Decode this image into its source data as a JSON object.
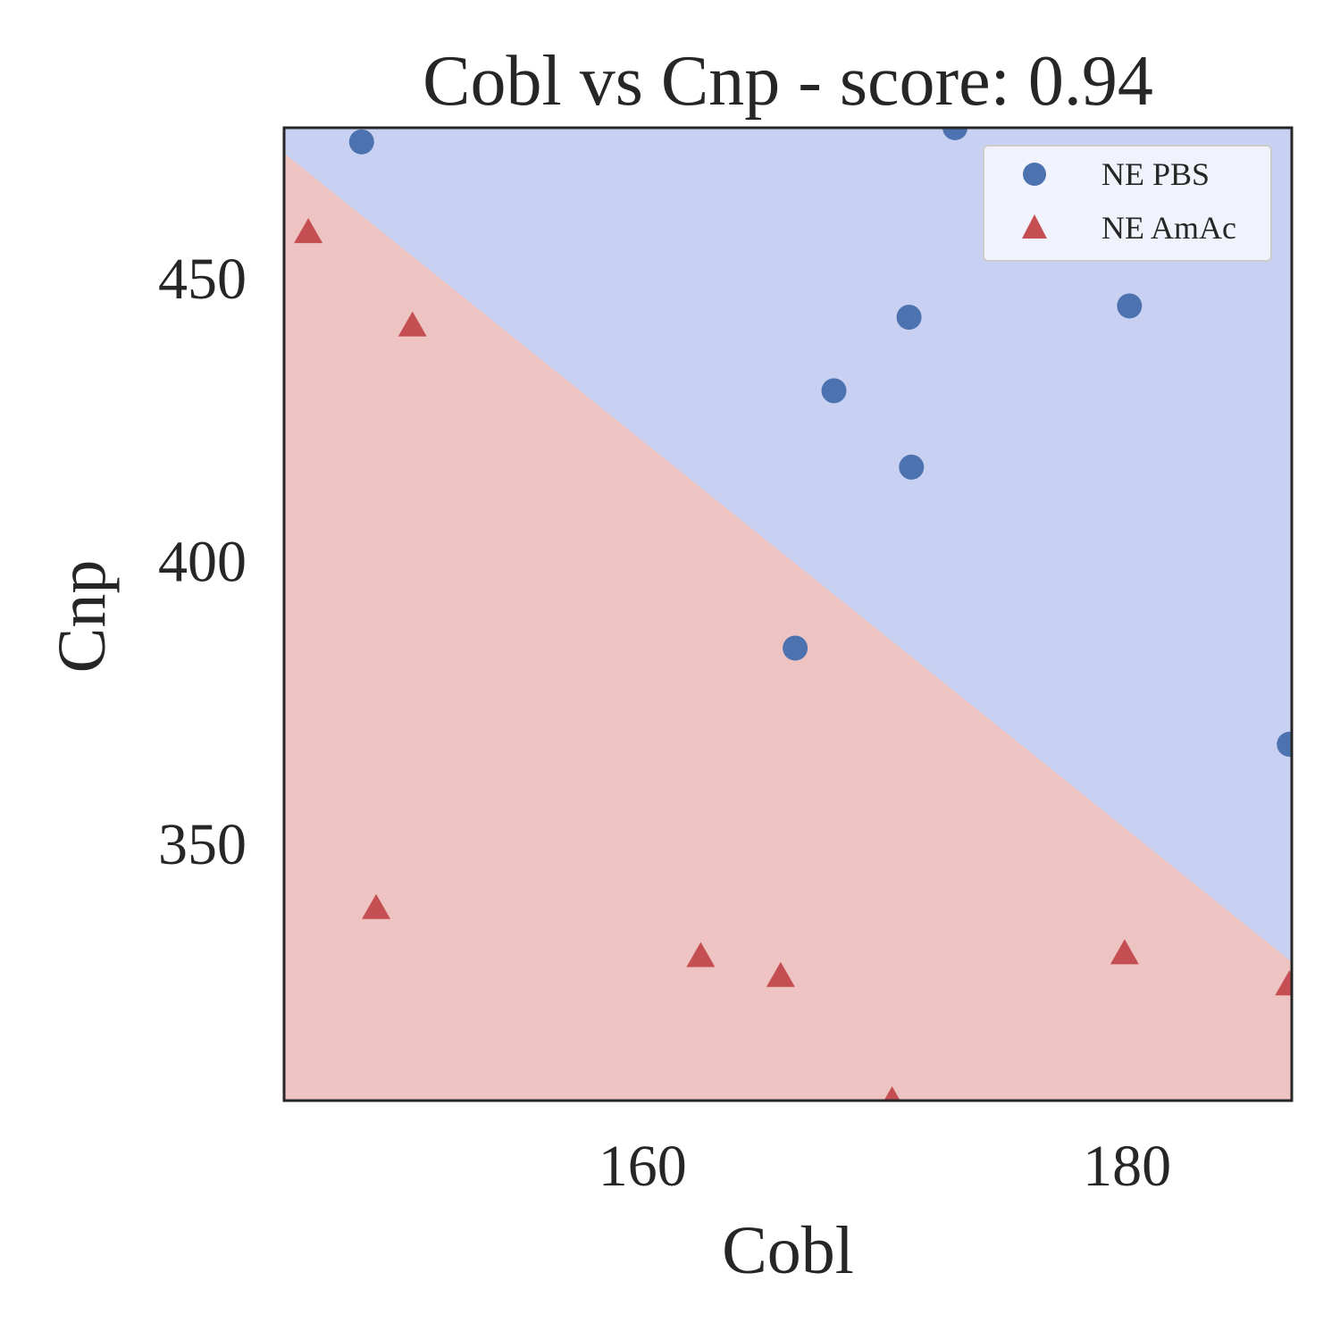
{
  "chart_data": {
    "type": "scatter",
    "title": "Cobl vs Cnp - score: 0.94",
    "xlabel": "Cobl",
    "ylabel": "Cnp",
    "xlim": [
      145.2,
      186.8
    ],
    "ylim": [
      304.5,
      476.5
    ],
    "xticks": [
      160,
      180
    ],
    "yticks": [
      350,
      400,
      450
    ],
    "grid": false,
    "legend_position": "top-right",
    "decision_boundary": {
      "description": "linear classifier boundary",
      "points": [
        [
          145.2,
          472.0
        ],
        [
          186.8,
          329.0
        ]
      ],
      "upper_region": "NE PBS",
      "lower_region": "NE AmAc"
    },
    "colors": {
      "NE PBS": "#4c72b0",
      "NE AmAc": "#c44e52",
      "region_upper": "#c8d1f1",
      "region_lower": "#eec4c3"
    },
    "series": [
      {
        "name": "NE PBS",
        "marker": "circle",
        "x": [
          148.4,
          172.9,
          167.9,
          171.0,
          180.1,
          171.1,
          166.3,
          186.7
        ],
        "y": [
          474.0,
          476.5,
          430.0,
          443.0,
          445.0,
          416.5,
          384.5,
          367.5
        ]
      },
      {
        "name": "NE AmAc",
        "marker": "triangle",
        "x": [
          146.2,
          150.5,
          149.0,
          162.4,
          165.7,
          179.9,
          186.7,
          170.3
        ],
        "y": [
          458.0,
          441.5,
          338.5,
          330.0,
          326.5,
          330.5,
          325.0,
          304.5
        ]
      }
    ]
  }
}
